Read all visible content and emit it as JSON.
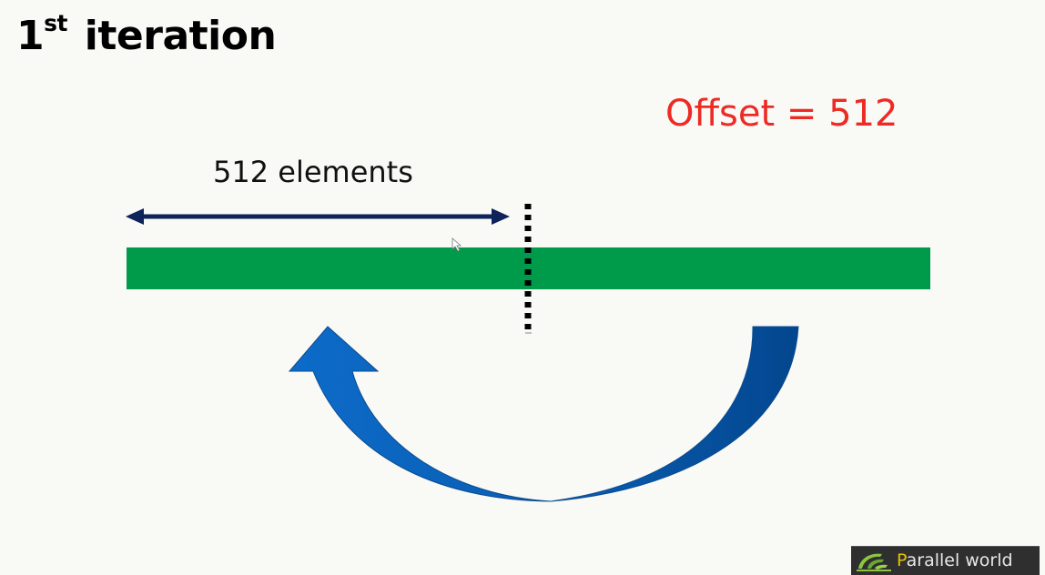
{
  "slide": {
    "title_main": "1",
    "title_sup": "st",
    "title_rest": "iteration",
    "offset_label": "Offset = 512",
    "span_label": "512 elements"
  },
  "colors": {
    "array_bar": "#009a4b",
    "offset_text": "#ee2a24",
    "span_arrow": "#0d2359",
    "curved_arrow": "#0a62b8"
  },
  "logo": {
    "first_letter": "P",
    "rest": "arallel world"
  }
}
